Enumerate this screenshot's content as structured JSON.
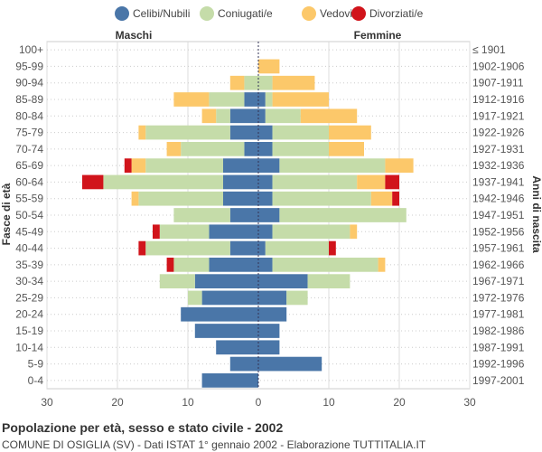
{
  "chart_data": {
    "type": "population-pyramid",
    "title": "Popolazione per età, sesso e stato civile - 2002",
    "subtitle": "COMUNE DI OSIGLIA (SV) - Dati ISTAT 1° gennaio 2002 - Elaborazione TUTTITALIA.IT",
    "left_label": "Maschi",
    "right_label": "Femmine",
    "ylabel_left": "Fasce di età",
    "ylabel_right": "Anni di nascita",
    "xlim": [
      -30,
      30
    ],
    "xticks": [
      "30",
      "20",
      "10",
      "0",
      "10",
      "20",
      "30"
    ],
    "series": [
      {
        "name": "Celibi/Nubili",
        "color": "#4a76a8"
      },
      {
        "name": "Coniugati/e",
        "color": "#c5dca9"
      },
      {
        "name": "Vedovi/e",
        "color": "#fcc86a"
      },
      {
        "name": "Divorziati/e",
        "color": "#d1141b"
      }
    ],
    "age_groups": [
      "100+",
      "95-99",
      "90-94",
      "85-89",
      "80-84",
      "75-79",
      "70-74",
      "65-69",
      "60-64",
      "55-59",
      "50-54",
      "45-49",
      "40-44",
      "35-39",
      "30-34",
      "25-29",
      "20-24",
      "15-19",
      "10-14",
      "5-9",
      "0-4"
    ],
    "birth_years": [
      "≤ 1901",
      "1902-1906",
      "1907-1911",
      "1912-1916",
      "1917-1921",
      "1922-1926",
      "1927-1931",
      "1932-1936",
      "1937-1941",
      "1942-1946",
      "1947-1951",
      "1952-1956",
      "1957-1961",
      "1962-1966",
      "1967-1971",
      "1972-1976",
      "1977-1981",
      "1982-1986",
      "1987-1991",
      "1992-1996",
      "1997-2001"
    ],
    "males": [
      [
        0,
        0,
        0,
        0
      ],
      [
        0,
        0,
        0,
        0
      ],
      [
        0,
        2,
        2,
        0
      ],
      [
        2,
        5,
        5,
        0
      ],
      [
        4,
        2,
        2,
        0
      ],
      [
        4,
        12,
        1,
        0
      ],
      [
        2,
        9,
        2,
        0
      ],
      [
        5,
        11,
        2,
        1
      ],
      [
        5,
        17,
        0,
        3
      ],
      [
        5,
        12,
        1,
        0
      ],
      [
        4,
        8,
        0,
        0
      ],
      [
        7,
        7,
        0,
        1
      ],
      [
        4,
        12,
        0,
        1
      ],
      [
        7,
        5,
        0,
        1
      ],
      [
        9,
        5,
        0,
        0
      ],
      [
        8,
        2,
        0,
        0
      ],
      [
        11,
        0,
        0,
        0
      ],
      [
        9,
        0,
        0,
        0
      ],
      [
        6,
        0,
        0,
        0
      ],
      [
        4,
        0,
        0,
        0
      ],
      [
        8,
        0,
        0,
        0
      ]
    ],
    "females": [
      [
        0,
        0,
        0,
        0
      ],
      [
        0,
        0,
        3,
        0
      ],
      [
        0,
        2,
        6,
        0
      ],
      [
        1,
        1,
        8,
        0
      ],
      [
        1,
        5,
        8,
        0
      ],
      [
        2,
        8,
        6,
        0
      ],
      [
        2,
        8,
        5,
        0
      ],
      [
        3,
        15,
        4,
        0
      ],
      [
        2,
        12,
        4,
        2
      ],
      [
        2,
        14,
        3,
        1
      ],
      [
        3,
        18,
        0,
        0
      ],
      [
        2,
        11,
        1,
        0
      ],
      [
        1,
        9,
        0,
        1
      ],
      [
        2,
        15,
        1,
        0
      ],
      [
        7,
        6,
        0,
        0
      ],
      [
        4,
        3,
        0,
        0
      ],
      [
        4,
        0,
        0,
        0
      ],
      [
        3,
        0,
        0,
        0
      ],
      [
        3,
        0,
        0,
        0
      ],
      [
        9,
        0,
        0,
        0
      ],
      [
        0,
        0,
        0,
        0
      ]
    ]
  }
}
